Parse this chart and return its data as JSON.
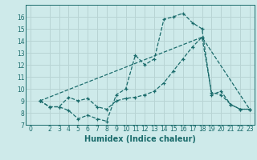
{
  "xlabel": "Humidex (Indice chaleur)",
  "background_color": "#ceeaea",
  "grid_color": "#b8d4d4",
  "line_color": "#1a6b6b",
  "xlim": [
    -0.5,
    23.5
  ],
  "ylim": [
    7,
    17
  ],
  "xticks": [
    0,
    2,
    3,
    4,
    5,
    6,
    7,
    8,
    9,
    10,
    11,
    12,
    13,
    14,
    15,
    16,
    17,
    18,
    19,
    20,
    21,
    22,
    23
  ],
  "yticks": [
    7,
    8,
    9,
    10,
    11,
    12,
    13,
    14,
    15,
    16
  ],
  "series1_x": [
    1,
    2,
    3,
    4,
    5,
    6,
    7,
    8,
    9,
    10,
    11,
    12,
    13,
    14,
    15,
    16,
    17,
    18,
    19,
    20,
    21,
    22,
    23
  ],
  "series1_y": [
    9.0,
    8.5,
    8.5,
    8.2,
    7.5,
    7.8,
    7.5,
    7.3,
    9.5,
    10.0,
    12.8,
    12.0,
    12.5,
    15.8,
    16.0,
    16.3,
    15.5,
    15.0,
    9.5,
    9.8,
    8.7,
    8.3,
    8.3
  ],
  "series2_x": [
    1,
    2,
    3,
    4,
    5,
    6,
    7,
    8,
    9,
    10,
    11,
    12,
    13,
    14,
    15,
    16,
    17,
    18,
    19,
    20,
    21,
    22,
    23
  ],
  "series2_y": [
    9.0,
    8.5,
    8.5,
    9.3,
    9.0,
    9.2,
    8.5,
    8.3,
    9.0,
    9.2,
    9.3,
    9.5,
    9.8,
    10.5,
    11.5,
    12.5,
    13.5,
    14.3,
    9.7,
    9.5,
    8.7,
    8.3,
    8.3
  ],
  "series3_x": [
    1,
    18,
    23
  ],
  "series3_y": [
    9.0,
    14.3,
    8.3
  ],
  "tick_fontsize": 5.5,
  "xlabel_fontsize": 7
}
